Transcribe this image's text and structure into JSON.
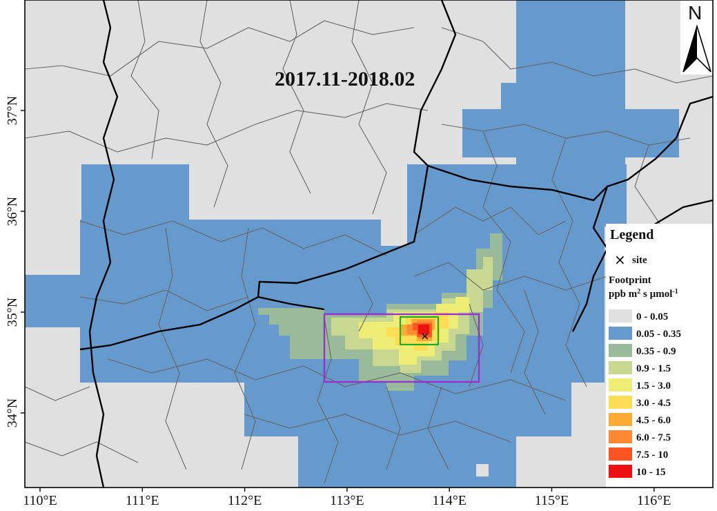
{
  "map": {
    "title": "2017.11-2018.02",
    "x_ticks": [
      "110°E",
      "111°E",
      "112°E",
      "113°E",
      "114°E",
      "115°E",
      "116°E"
    ],
    "y_ticks": [
      "34°N",
      "35°N",
      "36°N",
      "37°N"
    ],
    "north_label": "N",
    "site_symbol": "×",
    "colors": {
      "background": "#e0e0e0",
      "frame": "#000000",
      "province_border": "#000000",
      "county_border": "#666666",
      "outer_box": "#9932cc",
      "inner_box": "#22aa22"
    }
  },
  "legend": {
    "title": "Legend",
    "site_label": "site",
    "footprint_label": "Footprint",
    "unit_main": "ppb m",
    "unit_sup1": "2",
    "unit_mid": " s µmol",
    "unit_sup2": "-1",
    "classes": [
      {
        "range": "0 - 0.05",
        "color": "#e0e0e0"
      },
      {
        "range": "0.05 - 0.35",
        "color": "#6699cc"
      },
      {
        "range": "0.35 - 0.9",
        "color": "#99bb99"
      },
      {
        "range": "0.9 - 1.5",
        "color": "#c8d890"
      },
      {
        "range": "1.5 - 3.0",
        "color": "#eeee77"
      },
      {
        "range": "3.0 - 4.5",
        "color": "#ffdd55"
      },
      {
        "range": "4.5 - 6.0",
        "color": "#ffaa33"
      },
      {
        "range": "6.0 - 7.5",
        "color": "#ff8833"
      },
      {
        "range": "7.5 - 10",
        "color": "#ff5522"
      },
      {
        "range": "10 - 15",
        "color": "#ee1111"
      }
    ]
  }
}
